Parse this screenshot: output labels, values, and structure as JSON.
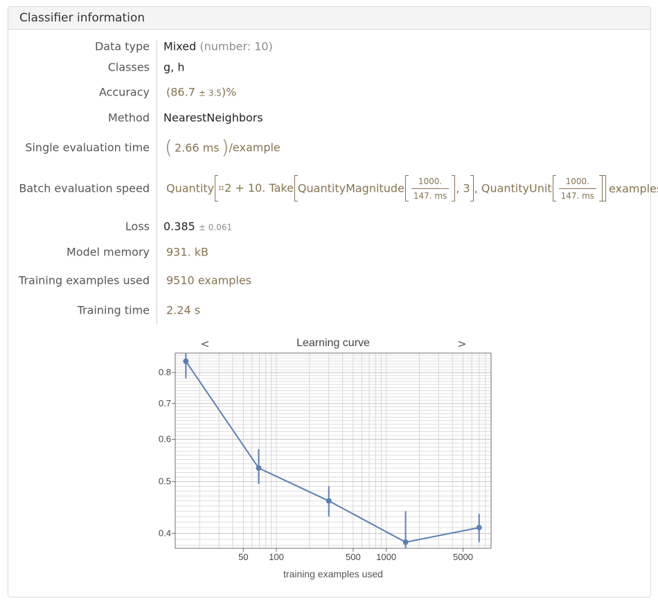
{
  "header": {
    "title": "Classifier information"
  },
  "rows": {
    "data_type": {
      "label": "Data type",
      "value": "Mixed",
      "note": "(number: 10)"
    },
    "classes": {
      "label": "Classes",
      "value": "g, h"
    },
    "accuracy": {
      "label": "Accuracy",
      "open": "(86.7 ",
      "pm": "± 3.5",
      "close": ")%"
    },
    "method": {
      "label": "Method",
      "value": "NearestNeighbors"
    },
    "single_eval": {
      "label": "Single evaluation time",
      "value": "2.66 ms",
      "suffix": "/example"
    },
    "batch_speed": {
      "label": "Batch evaluation speed",
      "part1": "Quantity",
      "part2": "⌗2 + 10. Take",
      "part3": "QuantityMagnitude",
      "num": "1000.",
      "den": "147. ms",
      "part4": ", 3",
      "part5": ", QuantityUnit",
      "num2": "1000.",
      "den2": "147. ms",
      "part6": "examples"
    },
    "loss": {
      "label": "Loss",
      "value": "0.385",
      "pm": "± 0.061"
    },
    "model_memory": {
      "label": "Model memory",
      "value": "931. kB"
    },
    "training_examples": {
      "label": "Training examples used",
      "value": "9510 examples"
    },
    "training_time": {
      "label": "Training time",
      "value": "2.24 s"
    }
  },
  "chart_nav": {
    "prev": "<",
    "next": ">"
  },
  "chart_data": {
    "type": "line",
    "title": "Learning curve",
    "xlabel": "training examples used",
    "ylabel": "",
    "x_scale": "log",
    "y_scale": "log",
    "xlim": [
      12,
      9000
    ],
    "ylim": [
      0.375,
      0.87
    ],
    "x_ticks": [
      {
        "value": 50,
        "label": "50"
      },
      {
        "value": 100,
        "label": "100"
      },
      {
        "value": 500,
        "label": "500"
      },
      {
        "value": 1000,
        "label": "1000"
      },
      {
        "value": 5000,
        "label": "5000"
      }
    ],
    "y_ticks": [
      {
        "value": 0.4,
        "label": "0.4"
      },
      {
        "value": 0.5,
        "label": "0.5"
      },
      {
        "value": 0.6,
        "label": "0.6"
      },
      {
        "value": 0.7,
        "label": "0.7"
      },
      {
        "value": 0.8,
        "label": "0.8"
      }
    ],
    "grid": true,
    "series": [
      {
        "color": "#5b7fb4",
        "points": [
          {
            "x": 15,
            "y": 0.84,
            "lo": 0.78,
            "hi": 0.9
          },
          {
            "x": 69,
            "y": 0.53,
            "lo": 0.495,
            "hi": 0.575
          },
          {
            "x": 300,
            "y": 0.46,
            "lo": 0.43,
            "hi": 0.49
          },
          {
            "x": 1500,
            "y": 0.385,
            "lo": 0.33,
            "hi": 0.44
          },
          {
            "x": 7000,
            "y": 0.41,
            "lo": 0.385,
            "hi": 0.435
          }
        ]
      }
    ]
  }
}
